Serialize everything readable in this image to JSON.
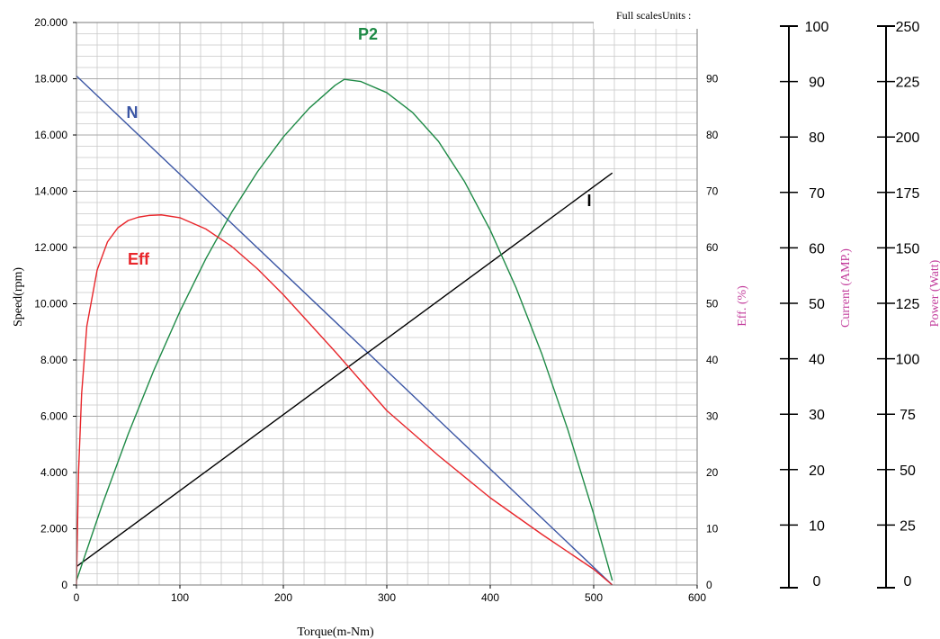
{
  "chart_data": {
    "type": "line",
    "note": "Full scalesUnits :",
    "x": {
      "label": "Torque(m-Nm)",
      "range": [
        0,
        600
      ],
      "ticks": [
        0,
        100,
        200,
        300,
        400,
        500,
        600
      ],
      "tick_labels": [
        "0",
        "100",
        "200",
        "300",
        "400",
        "500",
        "600"
      ]
    },
    "y_left": {
      "label": "Speed(rpm)",
      "range": [
        0,
        20000
      ],
      "ticks": [
        0,
        2000,
        4000,
        6000,
        8000,
        10000,
        12000,
        14000,
        16000,
        18000,
        20000
      ],
      "tick_labels": [
        "0",
        "2.000",
        "4.000",
        "6.000",
        "8.000",
        "10.000",
        "12.000",
        "14.000",
        "16.000",
        "18.000",
        "20.000"
      ]
    },
    "y_eff": {
      "label": "Eff. (%)",
      "range": [
        0,
        100
      ],
      "ticks": [
        0,
        10,
        20,
        30,
        40,
        50,
        60,
        70,
        80,
        90
      ],
      "tick_labels": [
        "0",
        "10",
        "20",
        "30",
        "40",
        "50",
        "60",
        "70",
        "80",
        "90"
      ]
    },
    "y_current": {
      "label": "Current (AMP.)",
      "range": [
        0,
        100
      ],
      "ticks": [
        0,
        10,
        20,
        30,
        40,
        50,
        60,
        70,
        80,
        90,
        100
      ],
      "tick_labels": [
        "0",
        "10",
        "20",
        "30",
        "40",
        "50",
        "60",
        "70",
        "80",
        "90",
        "100"
      ]
    },
    "y_power": {
      "label": "Power (Watt)",
      "range": [
        0,
        250
      ],
      "ticks": [
        0,
        25,
        50,
        75,
        100,
        125,
        150,
        175,
        200,
        225,
        250
      ],
      "tick_labels": [
        "0",
        "25",
        "50",
        "75",
        "100",
        "125",
        "150",
        "175",
        "200",
        "225",
        "250"
      ]
    },
    "grid": true,
    "series": [
      {
        "name": "N",
        "color": "#3a55a4",
        "axis": "y_left",
        "x": [
          0,
          518
        ],
        "y": [
          18100,
          0
        ]
      },
      {
        "name": "I",
        "color": "#000000",
        "axis": "y_current",
        "x": [
          0,
          518
        ],
        "y": [
          2.5,
          73.5
        ]
      },
      {
        "name": "P2",
        "color": "#1e8a46",
        "axis": "y_power",
        "x": [
          0,
          25,
          50,
          75,
          100,
          125,
          150,
          175,
          200,
          225,
          250,
          259,
          275,
          300,
          325,
          350,
          375,
          400,
          425,
          450,
          475,
          500,
          518
        ],
        "y": [
          0,
          34.3,
          66.0,
          95.0,
          121.3,
          145.0,
          166.0,
          184.3,
          200.0,
          213.0,
          223.3,
          226.0,
          225.0,
          220.0,
          211.0,
          198.0,
          180.0,
          158.0,
          132.0,
          102.0,
          68.0,
          30.0,
          0
        ]
      },
      {
        "name": "Eff",
        "color": "#e8262b",
        "axis": "y_eff",
        "x": [
          0,
          2,
          5,
          10,
          20,
          30,
          40,
          50,
          60,
          70,
          82,
          100,
          125,
          150,
          175,
          200,
          250,
          300,
          350,
          400,
          450,
          500,
          518
        ],
        "y": [
          0,
          20,
          34,
          46,
          56,
          61,
          63.5,
          64.8,
          65.4,
          65.7,
          65.8,
          65.3,
          63.3,
          60.2,
          56.2,
          51.6,
          41.5,
          31.0,
          23.0,
          15.5,
          9.0,
          2.8,
          0
        ]
      }
    ]
  }
}
